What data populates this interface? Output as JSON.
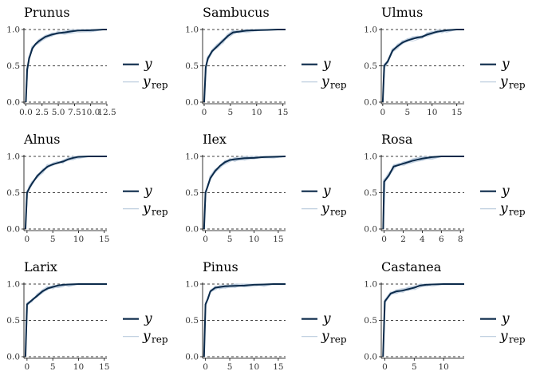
{
  "chart_data": {
    "type": "line",
    "title": "",
    "xlabel": "",
    "ylabel": "",
    "grid": false,
    "legend_position": "right",
    "colors": {
      "y": "#0b2a4a",
      "y_rep": "#b8c9dc",
      "ref_line": "#000000",
      "axis": "#000000"
    },
    "reference_lines_y": [
      0.0,
      0.5,
      1.0
    ],
    "legend": {
      "y_label": "y",
      "y_rep_label": "y",
      "y_rep_sub": "rep"
    },
    "panels": [
      {
        "title": "Prunus",
        "xlim": [
          -0.3,
          12.5
        ],
        "ylim": [
          0,
          1
        ],
        "x_ticks": [
          0,
          2.5,
          5,
          7.5,
          10,
          12.5
        ],
        "x_tick_labels": [
          "0.0",
          "2.5",
          "5.0",
          "7.5",
          "10.0",
          "12.5"
        ],
        "y_ticks": [
          0,
          0.5,
          1
        ],
        "y_tick_labels": [
          "0.0",
          "0.5",
          "1.0"
        ],
        "series": [
          {
            "name": "y",
            "x": [
              0,
              0.2,
              0.5,
              1,
              1.5,
              2,
              3,
              4,
              5,
              6,
              7,
              8,
              10,
              12,
              12.5
            ],
            "values": [
              0,
              0.45,
              0.6,
              0.74,
              0.8,
              0.84,
              0.9,
              0.93,
              0.95,
              0.96,
              0.975,
              0.985,
              0.99,
              1.0,
              1.0
            ]
          }
        ]
      },
      {
        "title": "Sambucus",
        "xlim": [
          -0.3,
          15.5
        ],
        "ylim": [
          0,
          1
        ],
        "x_ticks": [
          0,
          5,
          10,
          15
        ],
        "x_tick_labels": [
          "0",
          "5",
          "10",
          "15"
        ],
        "y_ticks": [
          0,
          0.5,
          1
        ],
        "y_tick_labels": [
          "0.0",
          "0.5",
          "1.0"
        ],
        "series": [
          {
            "name": "y",
            "x": [
              0,
              0.3,
              0.7,
              1.5,
              2.5,
              3.5,
              4.5,
              5.5,
              6.5,
              8,
              10,
              12,
              14,
              15.5
            ],
            "values": [
              0,
              0.48,
              0.6,
              0.7,
              0.77,
              0.84,
              0.91,
              0.96,
              0.97,
              0.985,
              0.99,
              0.995,
              1.0,
              1.0
            ]
          }
        ]
      },
      {
        "title": "Ulmus",
        "xlim": [
          -0.3,
          16.5
        ],
        "ylim": [
          0,
          1
        ],
        "x_ticks": [
          0,
          5,
          10,
          15
        ],
        "x_tick_labels": [
          "0",
          "5",
          "10",
          "15"
        ],
        "y_ticks": [
          0,
          0.5,
          1
        ],
        "y_tick_labels": [
          "0.0",
          "0.5",
          "1.0"
        ],
        "series": [
          {
            "name": "y",
            "x": [
              0,
              0.3,
              1,
              2,
              3,
              4,
              5,
              6,
              7,
              8,
              9,
              10,
              11,
              12,
              13,
              15,
              16.5
            ],
            "values": [
              0,
              0.5,
              0.56,
              0.71,
              0.77,
              0.82,
              0.85,
              0.87,
              0.89,
              0.9,
              0.93,
              0.95,
              0.97,
              0.98,
              0.99,
              1.0,
              1.0
            ]
          }
        ]
      },
      {
        "title": "Alnus",
        "xlim": [
          -0.6,
          15.5
        ],
        "ylim": [
          0,
          1
        ],
        "x_ticks": [
          0,
          5,
          10,
          15
        ],
        "x_tick_labels": [
          "0",
          "5",
          "10",
          "15"
        ],
        "y_ticks": [
          0,
          0.5,
          1
        ],
        "y_tick_labels": [
          "0.0",
          "0.5",
          "1.0"
        ],
        "series": [
          {
            "name": "y",
            "x": [
              -0.3,
              0,
              0.5,
              1,
              2,
              3,
              4,
              5,
              6,
              7,
              8,
              9,
              10,
              12,
              15.5
            ],
            "values": [
              0,
              0.5,
              0.57,
              0.63,
              0.73,
              0.8,
              0.86,
              0.89,
              0.91,
              0.93,
              0.96,
              0.98,
              0.995,
              1.0,
              1.0
            ]
          }
        ]
      },
      {
        "title": "Ilex",
        "xlim": [
          -0.6,
          16.5
        ],
        "ylim": [
          0,
          1
        ],
        "x_ticks": [
          0,
          5,
          10,
          15
        ],
        "x_tick_labels": [
          "0",
          "5",
          "10",
          "15"
        ],
        "y_ticks": [
          0,
          0.5,
          1
        ],
        "y_tick_labels": [
          "0.0",
          "0.5",
          "1.0"
        ],
        "series": [
          {
            "name": "y",
            "x": [
              -0.3,
              0,
              0.5,
              1,
              2,
              3,
              4,
              5,
              6,
              8,
              10,
              12,
              14,
              16.5
            ],
            "values": [
              0,
              0.5,
              0.6,
              0.7,
              0.8,
              0.87,
              0.92,
              0.95,
              0.96,
              0.975,
              0.98,
              0.99,
              0.995,
              1.0
            ]
          }
        ]
      },
      {
        "title": "Rosa",
        "xlim": [
          -0.3,
          8.4
        ],
        "ylim": [
          0,
          1
        ],
        "x_ticks": [
          0,
          2,
          4,
          6,
          8
        ],
        "x_tick_labels": [
          "0",
          "2",
          "4",
          "6",
          "8"
        ],
        "y_ticks": [
          0,
          0.5,
          1
        ],
        "y_tick_labels": [
          "0.0",
          "0.5",
          "1.0"
        ],
        "series": [
          {
            "name": "y",
            "x": [
              -0.1,
              0,
              0.5,
              1,
              1.5,
              2,
              3,
              4,
              5,
              6,
              7,
              8,
              8.4
            ],
            "values": [
              0,
              0.65,
              0.74,
              0.86,
              0.88,
              0.9,
              0.94,
              0.97,
              0.99,
              1.0,
              1.0,
              1.0,
              1.0
            ]
          }
        ]
      },
      {
        "title": "Larix",
        "xlim": [
          -0.6,
          15.5
        ],
        "ylim": [
          0,
          1
        ],
        "x_ticks": [
          0,
          5,
          10,
          15
        ],
        "x_tick_labels": [
          "0",
          "5",
          "10",
          "15"
        ],
        "y_ticks": [
          0,
          0.5,
          1
        ],
        "y_tick_labels": [
          "0.0",
          "0.5",
          "1.0"
        ],
        "series": [
          {
            "name": "y",
            "x": [
              -0.3,
              0,
              1,
              2,
              3,
              4,
              5,
              6,
              7,
              8,
              10,
              12,
              15.5
            ],
            "values": [
              0,
              0.72,
              0.78,
              0.84,
              0.9,
              0.94,
              0.96,
              0.98,
              0.99,
              0.995,
              1.0,
              1.0,
              1.0
            ]
          }
        ]
      },
      {
        "title": "Pinus",
        "xlim": [
          -0.6,
          16.5
        ],
        "ylim": [
          0,
          1
        ],
        "x_ticks": [
          0,
          5,
          10,
          15
        ],
        "x_tick_labels": [
          "0",
          "5",
          "10",
          "15"
        ],
        "y_ticks": [
          0,
          0.5,
          1
        ],
        "y_tick_labels": [
          "0.0",
          "0.5",
          "1.0"
        ],
        "series": [
          {
            "name": "y",
            "x": [
              -0.3,
              0,
              0.5,
              1,
              2,
              3,
              4,
              6,
              8,
              10,
              12,
              14,
              16.5
            ],
            "values": [
              0,
              0.72,
              0.8,
              0.9,
              0.95,
              0.96,
              0.97,
              0.975,
              0.98,
              0.99,
              0.995,
              1.0,
              1.0
            ]
          }
        ]
      },
      {
        "title": "Castanea",
        "xlim": [
          -0.6,
          13.5
        ],
        "ylim": [
          0,
          1
        ],
        "x_ticks": [
          0,
          5,
          10
        ],
        "x_tick_labels": [
          "0",
          "5",
          "10"
        ],
        "y_ticks": [
          0,
          0.5,
          1
        ],
        "y_tick_labels": [
          "0.0",
          "0.5",
          "1.0"
        ],
        "series": [
          {
            "name": "y",
            "x": [
              -0.3,
              0,
              1,
              2,
              3,
              4,
              5,
              6,
              7,
              8,
              10,
              12,
              13.5
            ],
            "values": [
              0,
              0.76,
              0.87,
              0.9,
              0.91,
              0.93,
              0.95,
              0.98,
              0.99,
              0.995,
              1.0,
              1.0,
              1.0
            ]
          }
        ]
      }
    ]
  }
}
